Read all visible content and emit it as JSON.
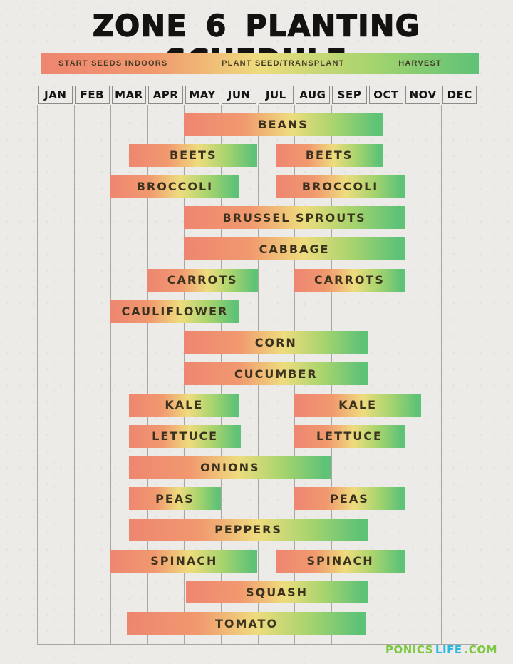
{
  "title": "ZONE 6 PLANTING SCHEDULE",
  "legend": {
    "items": [
      "START SEEDS INDOORS",
      "PLANT SEED/TRANSPLANT",
      "HARVEST"
    ]
  },
  "footer": {
    "brand": [
      {
        "text": "PONICS",
        "color": "#7cc83f"
      },
      {
        "text": "LIFE",
        "color": "#2ab7e4"
      },
      {
        "text": ".COM",
        "color": "#7cc83f"
      }
    ]
  },
  "colors": {
    "background": "#ecebe7",
    "gridline": "#a9a7a3",
    "header_border": "#8d8b88",
    "bar_label": "#3a321f",
    "gradient": [
      "#ee8670",
      "#f1996f",
      "#eedc7e",
      "#a7d46e",
      "#5ec277"
    ]
  },
  "chart_data": {
    "type": "gantt",
    "title": "Zone 6 Planting Schedule",
    "months": [
      "JAN",
      "FEB",
      "MAR",
      "APR",
      "MAY",
      "JUN",
      "JUL",
      "AUG",
      "SEP",
      "OCT",
      "NOV",
      "DEC"
    ],
    "legend": [
      "START SEEDS INDOORS",
      "PLANT SEED/TRANSPLANT",
      "HARVEST"
    ],
    "axis_note": "month scale Jan=0 .. Dec=11; fractions are half-months",
    "rows": [
      {
        "crop": "BEANS",
        "bars": [
          {
            "start_m": 4.0,
            "end_m": 9.4,
            "start": "early May",
            "end": "mid Oct"
          }
        ]
      },
      {
        "crop": "BEETS",
        "bars": [
          {
            "start_m": 2.5,
            "end_m": 6.0,
            "start": "mid Mar",
            "end": "end Jun"
          },
          {
            "start_m": 6.5,
            "end_m": 9.4,
            "start": "mid Jul",
            "end": "mid Oct"
          }
        ]
      },
      {
        "crop": "BROCCOLI",
        "bars": [
          {
            "start_m": 2.0,
            "end_m": 5.5,
            "start": "early Mar",
            "end": "mid Jun"
          },
          {
            "start_m": 6.5,
            "end_m": 10.0,
            "start": "mid Jul",
            "end": "end Oct"
          }
        ]
      },
      {
        "crop": "BRUSSEL SPROUTS",
        "bars": [
          {
            "start_m": 4.0,
            "end_m": 10.0,
            "start": "early May",
            "end": "end Oct"
          }
        ]
      },
      {
        "crop": "CABBAGE",
        "bars": [
          {
            "start_m": 4.0,
            "end_m": 10.0,
            "start": "early May",
            "end": "end Oct"
          }
        ]
      },
      {
        "crop": "CARROTS",
        "bars": [
          {
            "start_m": 3.0,
            "end_m": 6.0,
            "start": "early Apr",
            "end": "end Jun"
          },
          {
            "start_m": 7.0,
            "end_m": 10.0,
            "start": "early Aug",
            "end": "end Oct"
          }
        ]
      },
      {
        "crop": "CAULIFLOWER",
        "bars": [
          {
            "start_m": 2.0,
            "end_m": 5.5,
            "start": "early Mar",
            "end": "mid Jun"
          }
        ]
      },
      {
        "crop": "CORN",
        "bars": [
          {
            "start_m": 4.0,
            "end_m": 9.0,
            "start": "early May",
            "end": "end Sep"
          }
        ]
      },
      {
        "crop": "CUCUMBER",
        "bars": [
          {
            "start_m": 4.0,
            "end_m": 9.0,
            "start": "early May",
            "end": "end Sep"
          }
        ]
      },
      {
        "crop": "KALE",
        "bars": [
          {
            "start_m": 2.5,
            "end_m": 5.5,
            "start": "mid Mar",
            "end": "mid Jun"
          },
          {
            "start_m": 7.0,
            "end_m": 10.45,
            "start": "early Aug",
            "end": "mid Nov"
          }
        ]
      },
      {
        "crop": "LETTUCE",
        "bars": [
          {
            "start_m": 2.5,
            "end_m": 5.55,
            "start": "mid Mar",
            "end": "mid Jun"
          },
          {
            "start_m": 7.0,
            "end_m": 10.0,
            "start": "early Aug",
            "end": "end Oct"
          }
        ]
      },
      {
        "crop": "ONIONS",
        "bars": [
          {
            "start_m": 2.5,
            "end_m": 8.0,
            "start": "mid Mar",
            "end": "end Aug"
          }
        ]
      },
      {
        "crop": "PEAS",
        "bars": [
          {
            "start_m": 2.5,
            "end_m": 5.0,
            "start": "mid Mar",
            "end": "end May"
          },
          {
            "start_m": 7.0,
            "end_m": 10.0,
            "start": "early Aug",
            "end": "end Oct"
          }
        ]
      },
      {
        "crop": "PEPPERS",
        "bars": [
          {
            "start_m": 2.5,
            "end_m": 9.0,
            "start": "mid Mar",
            "end": "end Sep"
          }
        ]
      },
      {
        "crop": "SPINACH",
        "bars": [
          {
            "start_m": 2.0,
            "end_m": 6.0,
            "start": "early Mar",
            "end": "end Jun"
          },
          {
            "start_m": 6.5,
            "end_m": 10.0,
            "start": "mid Jul",
            "end": "end Oct"
          }
        ]
      },
      {
        "crop": "SQUASH",
        "bars": [
          {
            "start_m": 4.05,
            "end_m": 9.0,
            "start": "early May",
            "end": "end Sep"
          }
        ]
      },
      {
        "crop": "TOMATO",
        "bars": [
          {
            "start_m": 2.45,
            "end_m": 8.95,
            "start": "mid Mar",
            "end": "end Sep"
          }
        ]
      }
    ]
  }
}
